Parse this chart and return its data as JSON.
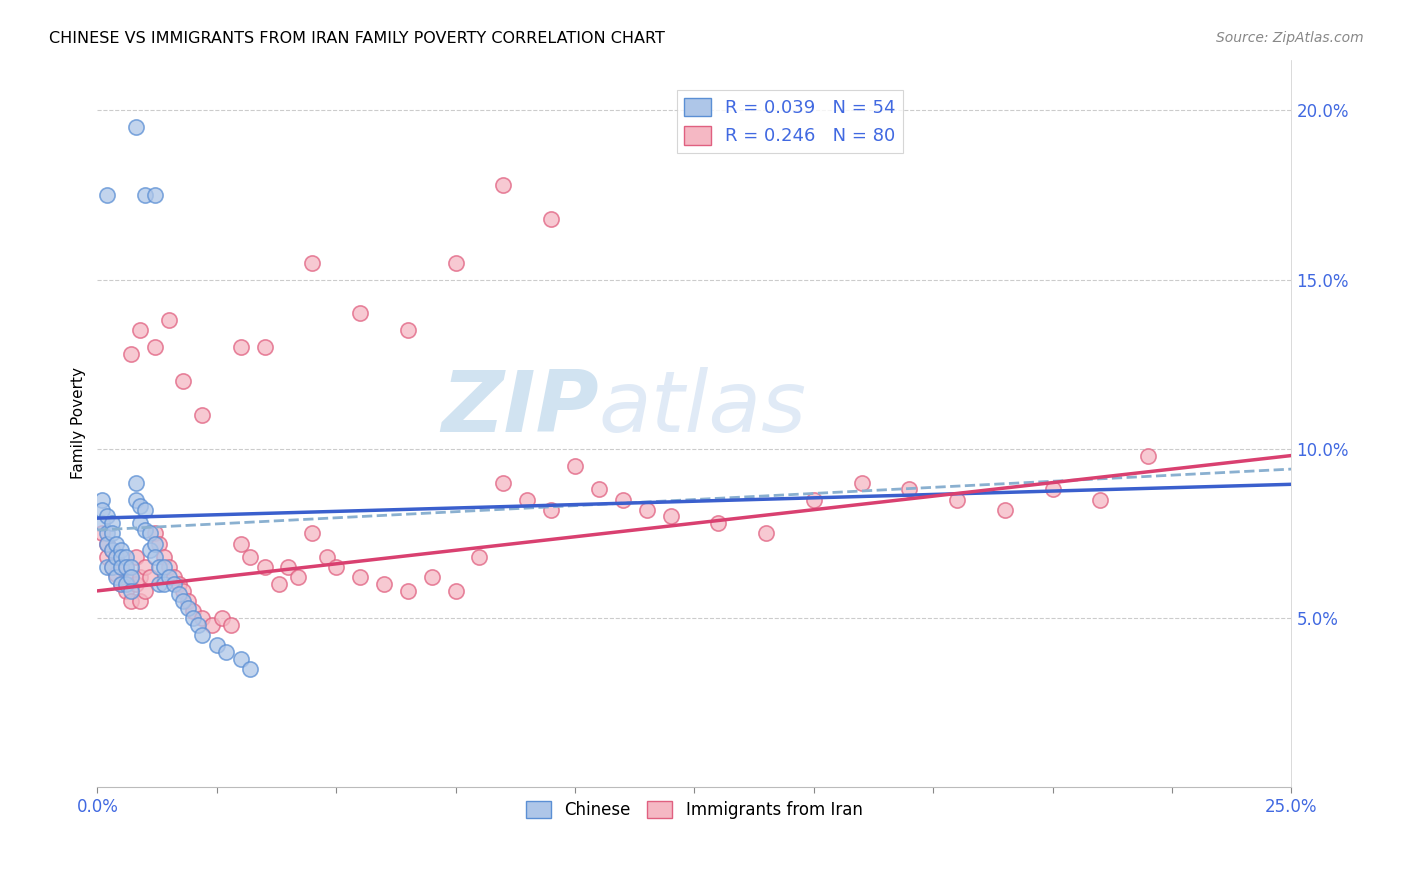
{
  "title": "CHINESE VS IMMIGRANTS FROM IRAN FAMILY POVERTY CORRELATION CHART",
  "source": "Source: ZipAtlas.com",
  "ylabel": "Family Poverty",
  "ytick_values": [
    0.05,
    0.1,
    0.15,
    0.2
  ],
  "xlim": [
    0.0,
    0.25
  ],
  "ylim": [
    0.0,
    0.215
  ],
  "legend_blue_label": "R = 0.039   N = 54",
  "legend_pink_label": "R = 0.246   N = 80",
  "legend_bottom_left": "Chinese",
  "legend_bottom_right": "Immigrants from Iran",
  "blue_fill": "#aec6e8",
  "pink_fill": "#f5b8c4",
  "blue_edge": "#5b8fd4",
  "pink_edge": "#e06080",
  "blue_line_color": "#3a5fcd",
  "pink_line_color": "#d94070",
  "dashed_line_color": "#8ab0d0",
  "watermark_color": "#cce0f0",
  "xtick_positions": [
    0.0,
    0.025,
    0.05,
    0.075,
    0.1,
    0.125,
    0.15,
    0.175,
    0.2,
    0.225,
    0.25
  ],
  "blue_line": [
    0.0795,
    0.0,
    0.25,
    0.0895
  ],
  "pink_line": [
    0.058,
    0.0,
    0.25,
    0.098
  ],
  "dash_line": [
    0.076,
    0.0,
    0.25,
    0.094
  ],
  "chinese_x": [
    0.001,
    0.001,
    0.001,
    0.002,
    0.002,
    0.002,
    0.002,
    0.003,
    0.003,
    0.003,
    0.003,
    0.004,
    0.004,
    0.004,
    0.005,
    0.005,
    0.005,
    0.005,
    0.006,
    0.006,
    0.006,
    0.007,
    0.007,
    0.007,
    0.008,
    0.008,
    0.009,
    0.009,
    0.01,
    0.01,
    0.011,
    0.011,
    0.012,
    0.012,
    0.013,
    0.013,
    0.014,
    0.014,
    0.015,
    0.016,
    0.017,
    0.018,
    0.019,
    0.02,
    0.021,
    0.022,
    0.025,
    0.027,
    0.03,
    0.032,
    0.008,
    0.01,
    0.012,
    0.002
  ],
  "chinese_y": [
    0.085,
    0.082,
    0.078,
    0.08,
    0.075,
    0.072,
    0.065,
    0.078,
    0.075,
    0.07,
    0.065,
    0.072,
    0.068,
    0.062,
    0.07,
    0.068,
    0.065,
    0.06,
    0.068,
    0.065,
    0.06,
    0.065,
    0.062,
    0.058,
    0.09,
    0.085,
    0.083,
    0.078,
    0.082,
    0.076,
    0.075,
    0.07,
    0.072,
    0.068,
    0.065,
    0.06,
    0.065,
    0.06,
    0.062,
    0.06,
    0.057,
    0.055,
    0.053,
    0.05,
    0.048,
    0.045,
    0.042,
    0.04,
    0.038,
    0.035,
    0.195,
    0.175,
    0.175,
    0.175
  ],
  "iran_x": [
    0.001,
    0.002,
    0.002,
    0.003,
    0.003,
    0.004,
    0.004,
    0.005,
    0.005,
    0.006,
    0.006,
    0.007,
    0.007,
    0.008,
    0.008,
    0.009,
    0.009,
    0.01,
    0.01,
    0.011,
    0.012,
    0.013,
    0.014,
    0.015,
    0.016,
    0.017,
    0.018,
    0.019,
    0.02,
    0.022,
    0.024,
    0.026,
    0.028,
    0.03,
    0.032,
    0.035,
    0.038,
    0.04,
    0.042,
    0.045,
    0.048,
    0.05,
    0.055,
    0.06,
    0.065,
    0.07,
    0.075,
    0.08,
    0.085,
    0.09,
    0.095,
    0.1,
    0.105,
    0.11,
    0.115,
    0.12,
    0.13,
    0.14,
    0.15,
    0.16,
    0.17,
    0.18,
    0.19,
    0.2,
    0.21,
    0.22,
    0.007,
    0.009,
    0.012,
    0.015,
    0.018,
    0.022,
    0.03,
    0.035,
    0.045,
    0.055,
    0.065,
    0.075,
    0.085,
    0.095
  ],
  "iran_y": [
    0.075,
    0.072,
    0.068,
    0.07,
    0.065,
    0.068,
    0.063,
    0.065,
    0.06,
    0.065,
    0.058,
    0.062,
    0.055,
    0.068,
    0.06,
    0.062,
    0.055,
    0.065,
    0.058,
    0.062,
    0.075,
    0.072,
    0.068,
    0.065,
    0.062,
    0.06,
    0.058,
    0.055,
    0.052,
    0.05,
    0.048,
    0.05,
    0.048,
    0.072,
    0.068,
    0.065,
    0.06,
    0.065,
    0.062,
    0.075,
    0.068,
    0.065,
    0.062,
    0.06,
    0.058,
    0.062,
    0.058,
    0.068,
    0.09,
    0.085,
    0.082,
    0.095,
    0.088,
    0.085,
    0.082,
    0.08,
    0.078,
    0.075,
    0.085,
    0.09,
    0.088,
    0.085,
    0.082,
    0.088,
    0.085,
    0.098,
    0.128,
    0.135,
    0.13,
    0.138,
    0.12,
    0.11,
    0.13,
    0.13,
    0.155,
    0.14,
    0.135,
    0.155,
    0.178,
    0.168
  ]
}
